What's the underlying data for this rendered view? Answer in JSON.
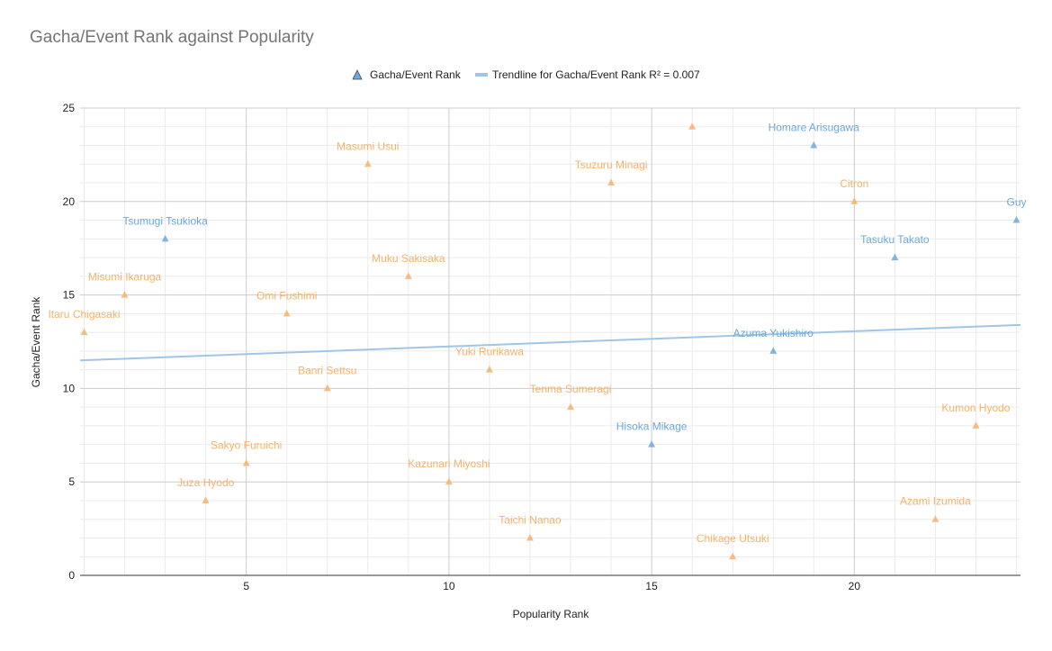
{
  "chart_data": {
    "type": "scatter",
    "title": "Gacha/Event Rank against Popularity",
    "xlabel": "Popularity Rank",
    "ylabel": "Gacha/Event Rank",
    "xlim": [
      0.9,
      24.1
    ],
    "ylim": [
      0,
      25
    ],
    "x_ticks": [
      5,
      10,
      15,
      20
    ],
    "y_ticks": [
      0,
      5,
      10,
      15,
      20,
      25
    ],
    "x_minor_step": 1,
    "y_minor_step": 1,
    "grid": true,
    "legend_position": "top",
    "series": [
      {
        "name": "Gacha/Event Rank",
        "marker": "triangle",
        "color": "#6fa8dc",
        "points": [
          {
            "x": 1,
            "y": 13,
            "label": "Itaru Chigasaki",
            "color": "#f6b26b"
          },
          {
            "x": 2,
            "y": 15,
            "label": "Misumi Ikaruga",
            "color": "#f6b26b"
          },
          {
            "x": 3,
            "y": 18,
            "label": "Tsumugi Tsukioka",
            "color": "#6fa8dc"
          },
          {
            "x": 4,
            "y": 4,
            "label": "Juza Hyodo",
            "color": "#f6b26b"
          },
          {
            "x": 5,
            "y": 6,
            "label": "Sakyo Furuichi",
            "color": "#f6b26b"
          },
          {
            "x": 6,
            "y": 14,
            "label": "Omi Fushimi",
            "color": "#f6b26b"
          },
          {
            "x": 7,
            "y": 10,
            "label": "Banri Settsu",
            "color": "#f6b26b"
          },
          {
            "x": 8,
            "y": 22,
            "label": "Masumi Usui",
            "color": "#f6b26b"
          },
          {
            "x": 9,
            "y": 16,
            "label": "Muku Sakisaka",
            "color": "#f6b26b"
          },
          {
            "x": 10,
            "y": 5,
            "label": "Kazunari Miyoshi",
            "color": "#f6b26b"
          },
          {
            "x": 11,
            "y": 11,
            "label": "Yuki Rurikawa",
            "color": "#f6b26b"
          },
          {
            "x": 12,
            "y": 2,
            "label": "Taichi Nanao",
            "color": "#f6b26b"
          },
          {
            "x": 13,
            "y": 9,
            "label": "Tenma Sumeragi",
            "color": "#f6b26b"
          },
          {
            "x": 14,
            "y": 21,
            "label": "Tsuzuru Minagi",
            "color": "#f6b26b"
          },
          {
            "x": 15,
            "y": 7,
            "label": "Hisoka Mikage",
            "color": "#6fa8dc"
          },
          {
            "x": 16,
            "y": 24,
            "label": "",
            "color": "#f6b26b"
          },
          {
            "x": 17,
            "y": 1,
            "label": "Chikage Utsuki",
            "color": "#f6b26b"
          },
          {
            "x": 18,
            "y": 12,
            "label": "Azuma Yukishiro",
            "color": "#6fa8dc"
          },
          {
            "x": 19,
            "y": 23,
            "label": "Homare Arisugawa",
            "color": "#6fa8dc"
          },
          {
            "x": 20,
            "y": 20,
            "label": "Citron",
            "color": "#f6b26b"
          },
          {
            "x": 21,
            "y": 17,
            "label": "Tasuku Takato",
            "color": "#6fa8dc"
          },
          {
            "x": 22,
            "y": 3,
            "label": "Azami Izumida",
            "color": "#f6b26b"
          },
          {
            "x": 23,
            "y": 8,
            "label": "Kumon Hyodo",
            "color": "#f6b26b"
          },
          {
            "x": 24,
            "y": 19,
            "label": "Guy",
            "color": "#6fa8dc"
          }
        ]
      }
    ],
    "trendline": {
      "name": "Trendline for Gacha/Event Rank R² = 0.007",
      "color": "#9fc5e8",
      "endpoints": [
        {
          "x": 0.9,
          "y": 11.5
        },
        {
          "x": 24.1,
          "y": 13.4
        }
      ]
    }
  }
}
